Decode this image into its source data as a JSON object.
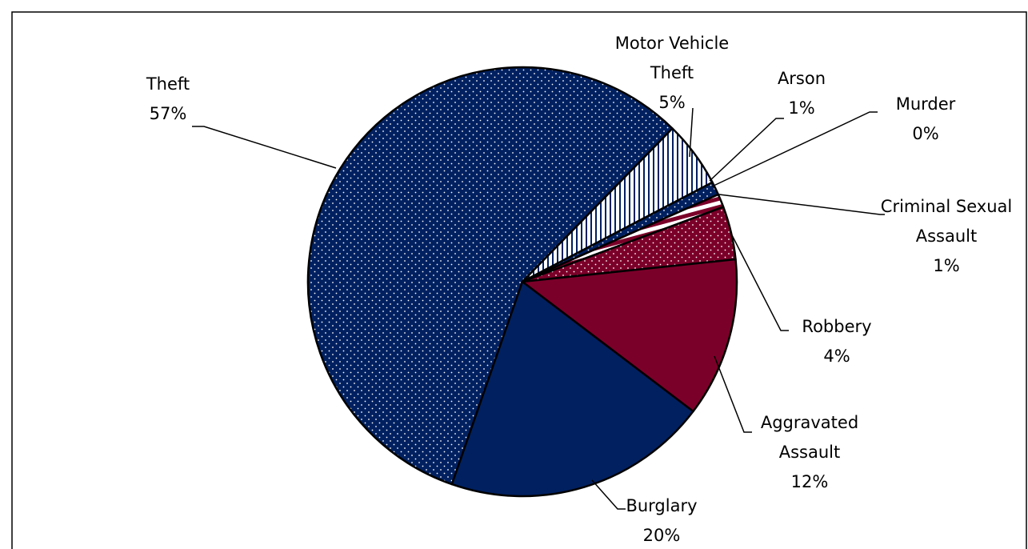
{
  "chart_data": {
    "type": "pie",
    "categories": [
      "Theft",
      "Motor Vehicle Theft",
      "Arson",
      "Murder",
      "Criminal Sexual Assault",
      "Robbery",
      "Aggravated Assault",
      "Burglary"
    ],
    "values": [
      57,
      5,
      1,
      0,
      1,
      4,
      12,
      20
    ],
    "value_labels": [
      "57%",
      "5%",
      "1%",
      "0%",
      "1%",
      "4%",
      "12%",
      "20%"
    ],
    "colors": [
      "#002060",
      "#002060",
      "#002060",
      "#ffffff",
      "#7b0029",
      "#7b0029",
      "#7b0029",
      "#002060"
    ],
    "patterns": [
      "dots",
      "vertical-stripes",
      "dots",
      "none",
      "horizontal-stripes",
      "dots",
      "none",
      "none"
    ]
  }
}
